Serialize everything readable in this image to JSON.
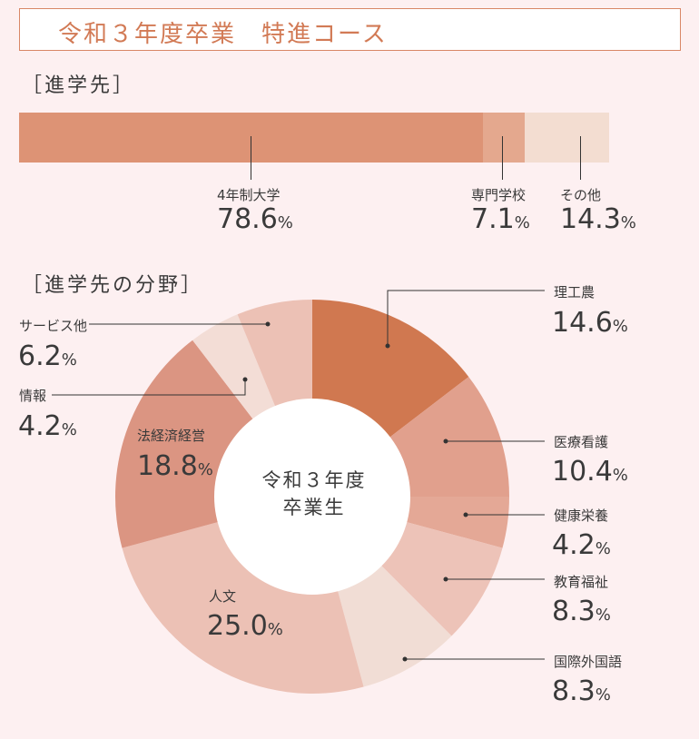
{
  "header": {
    "title": "令和３年度卒業　特進コース"
  },
  "sections": {
    "destinations": "［進学先］",
    "fields": "［進学先の分野］"
  },
  "chart_data": [
    {
      "type": "bar",
      "stacked": true,
      "orientation": "horizontal",
      "title": "［進学先］",
      "categories": [
        "4年制大学",
        "専門学校",
        "その他"
      ],
      "values": [
        78.6,
        7.1,
        14.3
      ],
      "value_labels": [
        "78.6",
        "7.1",
        "14.3"
      ],
      "unit": "%",
      "colors": [
        "#dd9375",
        "#e4a88e",
        "#f3ddd1"
      ]
    },
    {
      "type": "pie",
      "donut": true,
      "title": "［進学先の分野］",
      "center_label": [
        "令和３年度",
        "卒業生"
      ],
      "categories": [
        "理工農",
        "医療看護",
        "健康栄養",
        "教育福祉",
        "国際外国語",
        "人文",
        "法経済経営",
        "情報",
        "サービス他"
      ],
      "values": [
        14.6,
        10.4,
        4.2,
        8.3,
        8.3,
        25.0,
        18.8,
        4.2,
        6.2
      ],
      "value_labels": [
        "14.6",
        "10.4",
        "4.2",
        "8.3",
        "8.3",
        "25.0",
        "18.8",
        "4.2",
        "6.2"
      ],
      "unit": "%",
      "colors": [
        "#d07850",
        "#e1a08d",
        "#e4a896",
        "#edc3b8",
        "#f1ddd5",
        "#ecc1b5",
        "#db9582",
        "#f3ddd6",
        "#ecc1b5"
      ]
    }
  ]
}
